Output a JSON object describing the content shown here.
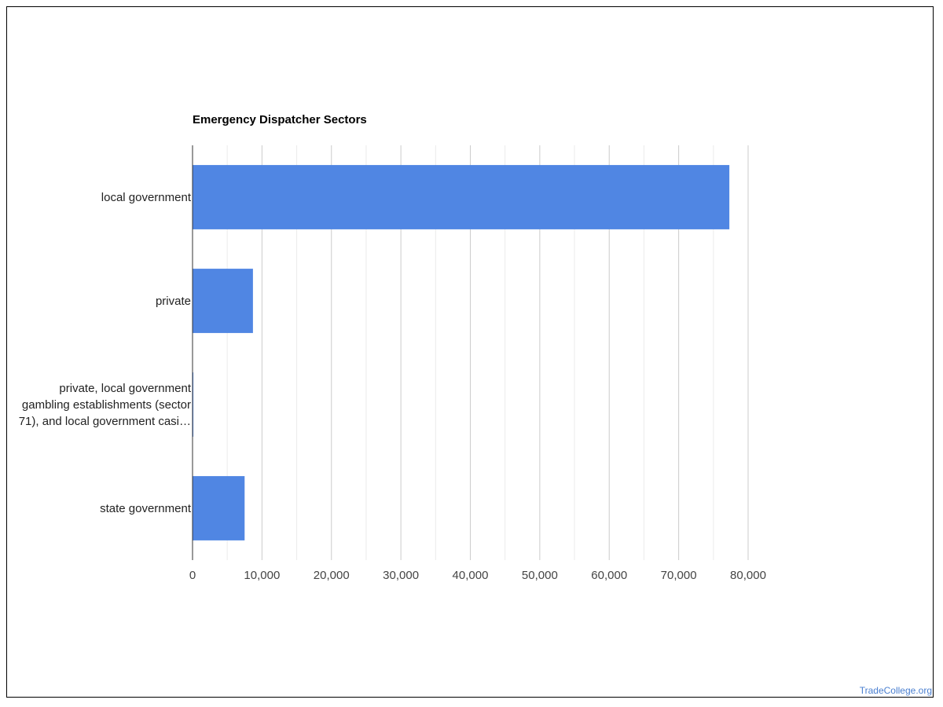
{
  "chart_data": {
    "type": "bar",
    "orientation": "horizontal",
    "title": "Emergency Dispatcher Sectors",
    "categories": [
      [
        "local government"
      ],
      [
        "private"
      ],
      [
        "private, local government",
        "gambling establishments (sector",
        "71), and local government casi…"
      ],
      [
        "state government"
      ]
    ],
    "values": [
      77300,
      8700,
      120,
      7500
    ],
    "xlim": [
      0,
      80000
    ],
    "x_ticks": [
      0,
      10000,
      20000,
      30000,
      40000,
      50000,
      60000,
      70000,
      80000
    ],
    "x_tick_labels": [
      "0",
      "10,000",
      "20,000",
      "30,000",
      "40,000",
      "50,000",
      "60,000",
      "70,000",
      "80,000"
    ],
    "minor_gridlines": true,
    "legend": "none",
    "bar_color": "#5086e3",
    "gridline_color": "#cccccc",
    "minor_gridline_color": "#ebebeb"
  },
  "watermark": "TradeCollege.org"
}
